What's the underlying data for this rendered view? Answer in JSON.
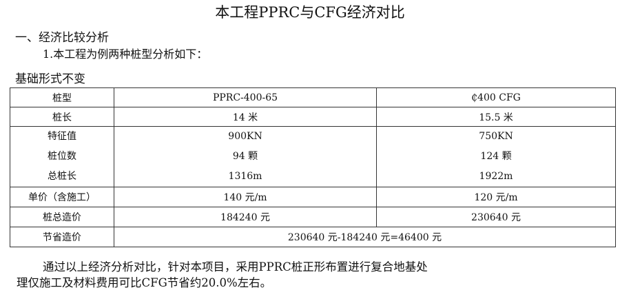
{
  "title": "本工程PPRC与CFG经济对比",
  "section_heading": "一、经济比较分析",
  "sub_heading": "1.本工程为例两种桩型分析如下：",
  "table_caption": "基础形式不变",
  "table": {
    "header": [
      "桩型",
      "PPRC-400-65",
      "₵400 CFG"
    ],
    "rows": [
      [
        "桩长",
        "14 米",
        "15.5 米"
      ],
      [
        "特征值",
        "900KN",
        "750KN"
      ],
      [
        "桩位数",
        "94 颗",
        "124 颗"
      ],
      [
        "总桩长",
        "1316m",
        "1922m"
      ],
      [
        "单价（含施工）",
        "140 元/m",
        "120 元/m"
      ],
      [
        "桩总造价",
        "184240 元",
        "230640 元"
      ]
    ],
    "savings_label": "节省造价",
    "savings_value": "230640 元-184240 元=46400 元"
  },
  "conclusion_line1": "通过以上经济分析对比，针对本项目，采用PPRC桩正形布置进行复合地基处",
  "conclusion_line2": "理仅施工及材料费用可比CFG节省约20.0%左右。"
}
